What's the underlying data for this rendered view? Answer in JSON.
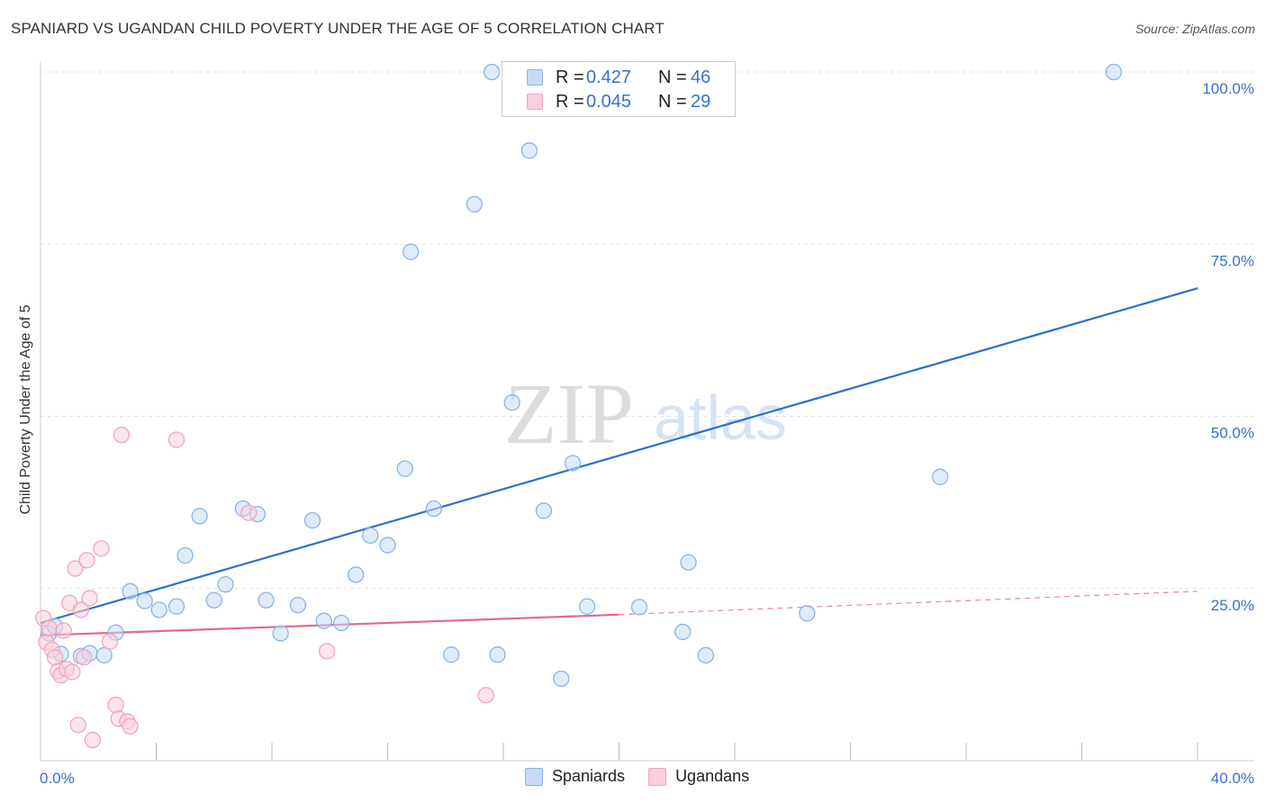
{
  "title": "SPANIARD VS UGANDAN CHILD POVERTY UNDER THE AGE OF 5 CORRELATION CHART",
  "source": "Source: ZipAtlas.com",
  "watermark": {
    "zip": "ZIP",
    "atlas": "atlas"
  },
  "legend_top": [
    {
      "r_label": "R =",
      "r_value": "0.427",
      "n_label": "N =",
      "n_value": "46"
    },
    {
      "r_label": "R =",
      "r_value": "0.045",
      "n_label": "N =",
      "n_value": "29"
    }
  ],
  "legend_bottom": [
    "Spaniards",
    "Ugandans"
  ],
  "x_tick_labels": {
    "left": "0.0%",
    "right": "40.0%"
  },
  "chart_data": {
    "type": "scatter",
    "title": "SPANIARD VS UGANDAN CHILD POVERTY UNDER THE AGE OF 5 CORRELATION CHART",
    "xlabel": "",
    "ylabel": "Child Poverty Under the Age of 5",
    "xlim": [
      0,
      40
    ],
    "ylim": [
      0,
      100
    ],
    "y_ticks": [
      25,
      50,
      75,
      100
    ],
    "y_tick_labels": [
      "25.0%",
      "50.0%",
      "75.0%",
      "100.0%"
    ],
    "x_tick_labels": [
      "0.0%",
      "40.0%"
    ],
    "grid": true,
    "legend_position": "top-center",
    "series": [
      {
        "name": "Spaniards",
        "color": "#8ab4e8",
        "fill": "#c7daf5",
        "line_color": "#2a6fd0",
        "r": 0.427,
        "n": 46,
        "trend": {
          "x": [
            0,
            40
          ],
          "y": [
            20.0,
            68.6
          ]
        },
        "points": [
          [
            0.3,
            18.5
          ],
          [
            0.5,
            19.5
          ],
          [
            0.7,
            15.5
          ],
          [
            1.4,
            15.2
          ],
          [
            1.7,
            15.6
          ],
          [
            2.2,
            15.3
          ],
          [
            2.6,
            18.6
          ],
          [
            3.1,
            24.6
          ],
          [
            3.6,
            23.2
          ],
          [
            4.1,
            21.9
          ],
          [
            4.7,
            22.4
          ],
          [
            5.0,
            29.8
          ],
          [
            5.5,
            35.5
          ],
          [
            6.0,
            23.3
          ],
          [
            6.4,
            25.6
          ],
          [
            7.0,
            36.6
          ],
          [
            7.5,
            35.8
          ],
          [
            7.8,
            23.3
          ],
          [
            8.3,
            18.5
          ],
          [
            8.9,
            22.6
          ],
          [
            9.4,
            34.9
          ],
          [
            9.8,
            20.3
          ],
          [
            10.4,
            20.0
          ],
          [
            10.9,
            27.0
          ],
          [
            11.4,
            32.7
          ],
          [
            12.0,
            31.3
          ],
          [
            12.6,
            42.4
          ],
          [
            12.8,
            73.9
          ],
          [
            13.6,
            36.6
          ],
          [
            14.2,
            15.4
          ],
          [
            15.0,
            80.8
          ],
          [
            15.6,
            100.0
          ],
          [
            15.8,
            15.4
          ],
          [
            16.3,
            52.0
          ],
          [
            16.9,
            88.6
          ],
          [
            17.4,
            36.3
          ],
          [
            18.0,
            11.9
          ],
          [
            18.4,
            43.2
          ],
          [
            18.9,
            22.4
          ],
          [
            20.7,
            22.3
          ],
          [
            22.2,
            18.7
          ],
          [
            22.4,
            28.8
          ],
          [
            23.0,
            15.3
          ],
          [
            26.5,
            21.4
          ],
          [
            31.1,
            41.2
          ],
          [
            37.1,
            100.0
          ]
        ]
      },
      {
        "name": "Ugandans",
        "color": "#f0a6bf",
        "fill": "#f9cfdc",
        "line_color": "#e06a92",
        "r": 0.045,
        "n": 29,
        "trend": {
          "x": [
            0,
            20
          ],
          "y": [
            18.2,
            21.2
          ]
        },
        "trend_dashed": {
          "x": [
            20,
            40
          ],
          "y": [
            21.2,
            24.6
          ]
        },
        "points": [
          [
            0.1,
            20.7
          ],
          [
            0.2,
            17.2
          ],
          [
            0.3,
            19.2
          ],
          [
            0.4,
            16.1
          ],
          [
            0.5,
            15.0
          ],
          [
            0.6,
            13.0
          ],
          [
            0.7,
            12.4
          ],
          [
            0.8,
            18.9
          ],
          [
            0.9,
            13.3
          ],
          [
            1.0,
            22.9
          ],
          [
            1.1,
            12.9
          ],
          [
            1.2,
            27.9
          ],
          [
            1.3,
            5.2
          ],
          [
            1.4,
            21.9
          ],
          [
            1.5,
            15.0
          ],
          [
            1.6,
            29.1
          ],
          [
            1.7,
            23.6
          ],
          [
            1.8,
            3.0
          ],
          [
            2.1,
            30.8
          ],
          [
            2.4,
            17.3
          ],
          [
            2.6,
            8.1
          ],
          [
            2.7,
            6.1
          ],
          [
            2.8,
            47.3
          ],
          [
            3.0,
            5.7
          ],
          [
            3.1,
            5.0
          ],
          [
            4.7,
            46.6
          ],
          [
            7.2,
            36.0
          ],
          [
            9.9,
            15.9
          ],
          [
            15.4,
            9.5
          ]
        ]
      }
    ]
  }
}
